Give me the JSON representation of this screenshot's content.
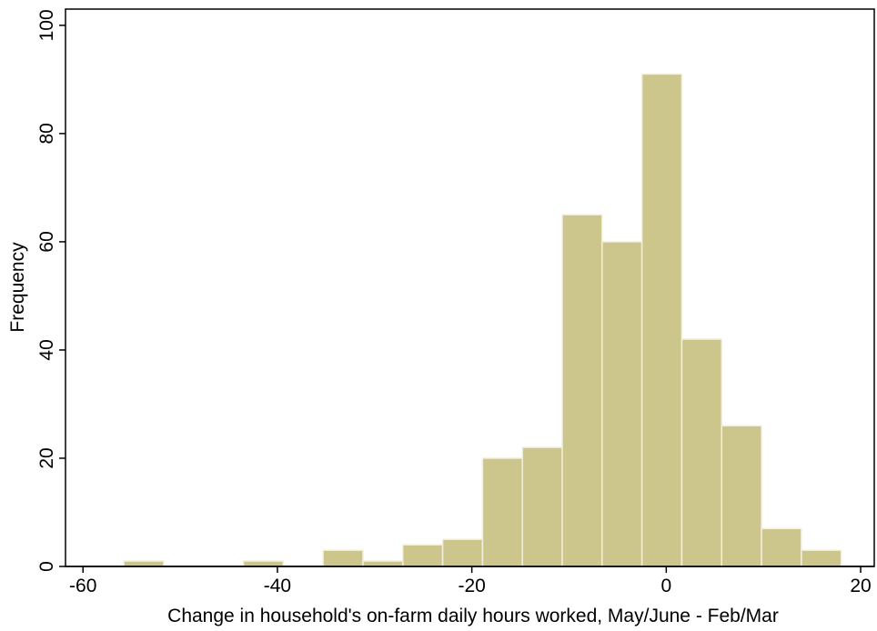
{
  "chart_data": {
    "type": "histogram",
    "xlabel": "Change in household's on-farm daily hours worked, May/June - Feb/Mar",
    "ylabel": "Frequency",
    "bins": [
      -55.8,
      -51.7,
      -47.6,
      -43.5,
      -39.4,
      -35.3,
      -31.2,
      -27.1,
      -23.0,
      -18.9,
      -14.8,
      -10.7,
      -6.6,
      -2.5,
      1.6,
      5.7,
      9.8,
      13.9,
      18.0
    ],
    "values": [
      1,
      0,
      0,
      1,
      0,
      3,
      1,
      4,
      5,
      20,
      22,
      65,
      60,
      91,
      42,
      26,
      7,
      3
    ],
    "color": "#cdc68c",
    "xlim": [
      -61.8,
      21.4
    ],
    "xticks": [
      -60,
      -40,
      -20,
      0,
      20
    ],
    "ylim": [
      0,
      103
    ],
    "yticks": [
      0,
      20,
      40,
      60,
      80,
      100
    ]
  }
}
